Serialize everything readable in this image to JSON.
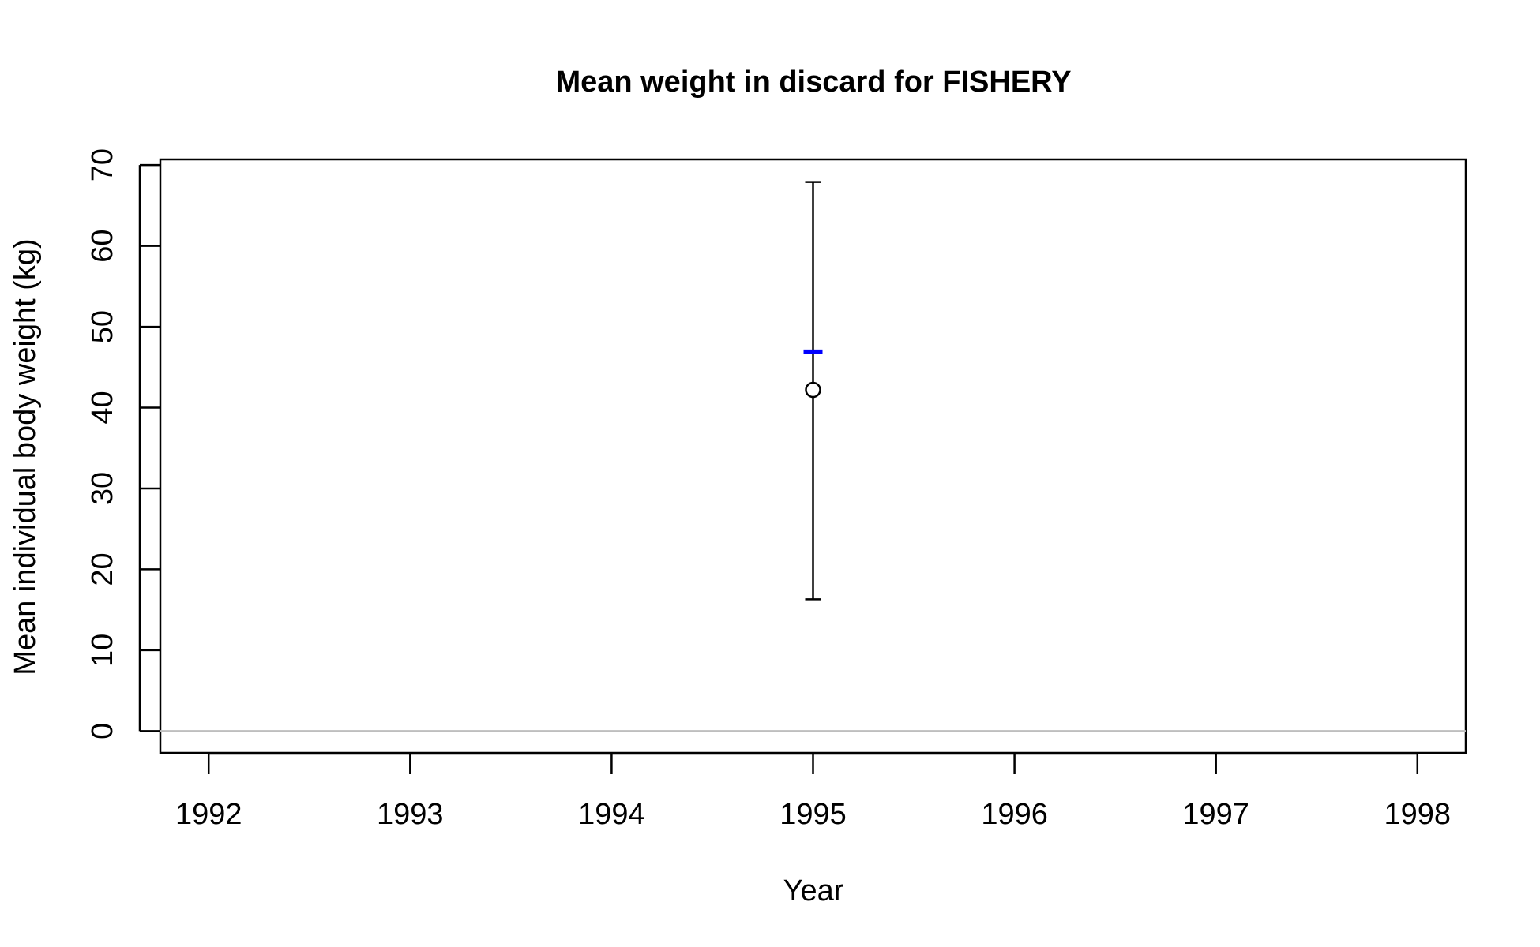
{
  "chart_data": {
    "type": "scatter",
    "title": "Mean weight in discard for FISHERY",
    "xlabel": "Year",
    "ylabel": "Mean individual body weight (kg)",
    "xlim": [
      1991.76,
      1998.24
    ],
    "ylim": [
      -2.7,
      70.7
    ],
    "x_ticks": [
      1992,
      1993,
      1994,
      1995,
      1996,
      1997,
      1998
    ],
    "y_ticks": [
      0,
      10,
      20,
      30,
      40,
      50,
      60,
      70
    ],
    "grid": false,
    "reference_line": {
      "y": 0,
      "color": "#bebebe"
    },
    "observed": [
      {
        "x": 1995,
        "y": 42.2,
        "lower": 16.3,
        "upper": 67.9
      }
    ],
    "expected": [
      {
        "x": 1995,
        "y": 46.9
      }
    ],
    "colors": {
      "observed": "#000000",
      "expected": "#0000ff",
      "axis": "#000000"
    }
  }
}
